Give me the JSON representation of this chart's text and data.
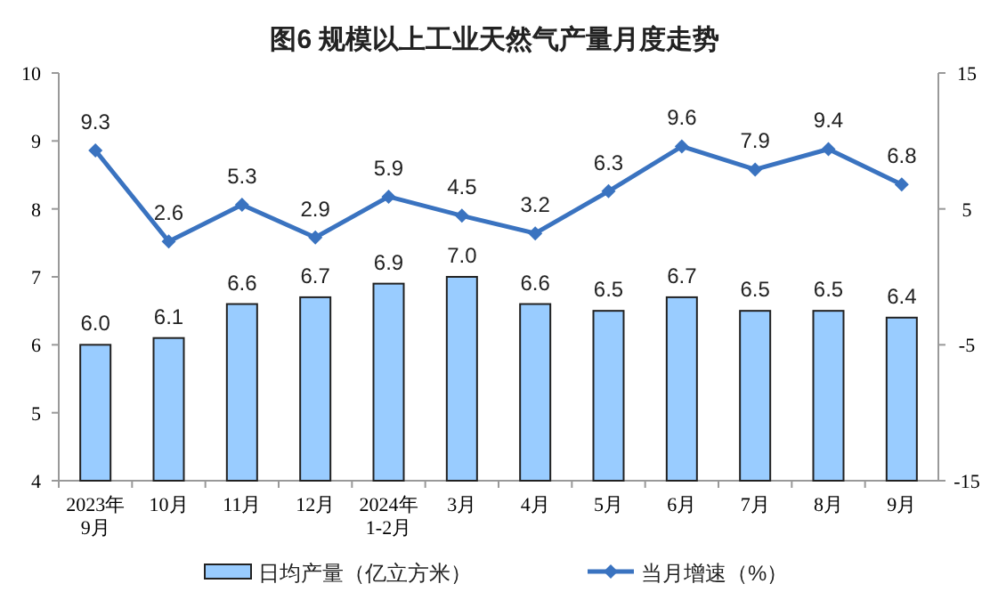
{
  "chart_data": {
    "type": "bar",
    "title": "图6  规模以上工业天然气产量月度走势",
    "categories": [
      "2023年\n9月",
      "10月",
      "11月",
      "12月",
      "2024年\n1-2月",
      "3月",
      "4月",
      "5月",
      "6月",
      "7月",
      "8月",
      "9月"
    ],
    "series": [
      {
        "name": "日均产量（亿立方米）",
        "color": "#99ccff",
        "values": [
          6.0,
          6.1,
          6.6,
          6.7,
          6.9,
          7.0,
          6.6,
          6.5,
          6.7,
          6.5,
          6.5,
          6.4
        ],
        "value_labels": [
          "6.0",
          "6.1",
          "6.6",
          "6.7",
          "6.9",
          "7.0",
          "6.6",
          "6.5",
          "6.7",
          "6.5",
          "6.5",
          "6.4"
        ]
      },
      {
        "name": "当月增速（%）",
        "type": "line",
        "axis": "y2",
        "color": "#3a73c0",
        "marker": "diamond",
        "values": [
          9.3,
          2.6,
          5.3,
          2.9,
          5.9,
          4.5,
          3.2,
          6.3,
          9.6,
          7.9,
          9.4,
          6.8
        ]
      }
    ],
    "ylim": [
      4,
      10
    ],
    "yticks": [
      4,
      5,
      6,
      7,
      8,
      9,
      10
    ],
    "y2lim": [
      -15,
      15
    ],
    "y2ticks": [
      -15,
      -5,
      5,
      15
    ],
    "data_labels": true,
    "legend": "bottom"
  }
}
